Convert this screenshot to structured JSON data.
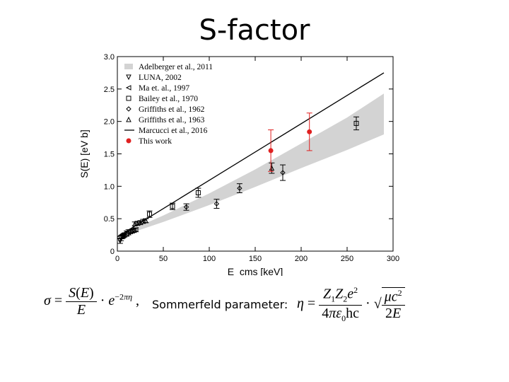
{
  "slide": {
    "title": "S-factor",
    "sommerfeld_label": "Sommerfeld parameter:"
  },
  "chart_data": {
    "type": "scatter",
    "title": "",
    "xlabel": "E_cms [keV]",
    "ylabel": "S(E) [eV b]",
    "xlim": [
      0,
      300
    ],
    "ylim": [
      0,
      3.0
    ],
    "xticks": [
      0,
      50,
      100,
      150,
      200,
      250,
      300
    ],
    "yticks": [
      0,
      0.5,
      1.0,
      1.5,
      2.0,
      2.5,
      3.0
    ],
    "legend_position": "top-left",
    "series": [
      {
        "name": "Adelberger et al., 2011",
        "kind": "band",
        "color": "#d3d3d3",
        "x": [
          0,
          50,
          100,
          150,
          200,
          250,
          290
        ],
        "lower": [
          0.21,
          0.45,
          0.71,
          0.99,
          1.28,
          1.56,
          1.8
        ],
        "upper": [
          0.24,
          0.55,
          0.89,
          1.26,
          1.66,
          2.06,
          2.43
        ]
      },
      {
        "name": "LUNA, 2002",
        "kind": "points",
        "marker": "triangle-down",
        "color": "#000000",
        "x": [
          3,
          4,
          5,
          6,
          7,
          8
        ],
        "y": [
          0.16,
          0.2,
          0.22,
          0.23,
          0.24,
          0.25
        ],
        "err": [
          0.04,
          0.04,
          0.03,
          0.03,
          0.03,
          0.03
        ]
      },
      {
        "name": "Ma et. al., 1997",
        "kind": "points",
        "marker": "triangle-left",
        "color": "#000000",
        "x": [
          10,
          12,
          14,
          16,
          18,
          20
        ],
        "y": [
          0.27,
          0.29,
          0.3,
          0.31,
          0.32,
          0.33
        ],
        "err": [
          0.04,
          0.04,
          0.03,
          0.03,
          0.03,
          0.03
        ]
      },
      {
        "name": "Bailey et al., 1970",
        "kind": "points",
        "marker": "square",
        "color": "#000000",
        "x": [
          35,
          60,
          88,
          260
        ],
        "y": [
          0.57,
          0.69,
          0.9,
          1.97
        ],
        "err": [
          0.05,
          0.05,
          0.07,
          0.1
        ]
      },
      {
        "name": "Griffiths et al., 1962",
        "kind": "points",
        "marker": "diamond",
        "color": "#000000",
        "x": [
          75,
          108,
          133,
          180
        ],
        "y": [
          0.68,
          0.73,
          0.97,
          1.21
        ],
        "err": [
          0.05,
          0.07,
          0.07,
          0.12
        ]
      },
      {
        "name": "Griffiths et al., 1963",
        "kind": "points",
        "marker": "triangle-up",
        "color": "#000000",
        "x": [
          19,
          22,
          25,
          28,
          31,
          168
        ],
        "y": [
          0.42,
          0.43,
          0.44,
          0.46,
          0.47,
          1.28
        ],
        "err": [
          0.03,
          0.03,
          0.03,
          0.03,
          0.03,
          0.08
        ]
      },
      {
        "name": "Marcucci et al., 2016",
        "kind": "line",
        "color": "#000000",
        "x": [
          0,
          290
        ],
        "y": [
          0.22,
          2.75
        ]
      },
      {
        "name": "This work",
        "kind": "points",
        "marker": "circle-filled",
        "color": "#e02020",
        "x": [
          167,
          209
        ],
        "y": [
          1.55,
          1.84
        ],
        "err": [
          0.32,
          0.29
        ]
      }
    ]
  }
}
